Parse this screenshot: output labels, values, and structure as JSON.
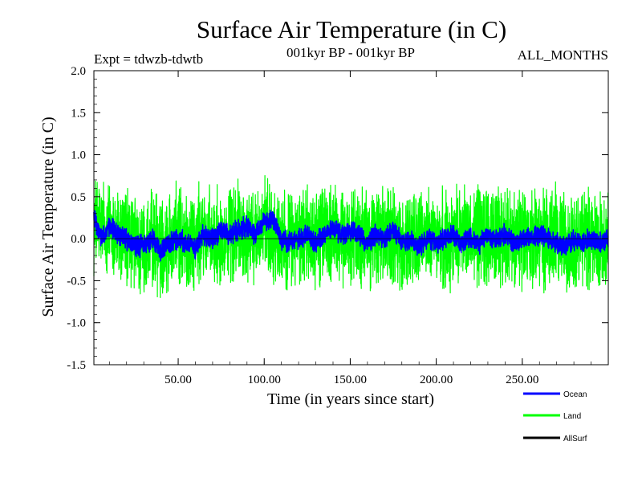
{
  "chart_data": {
    "type": "line",
    "title": "Surface Air Temperature (in C)",
    "subtitle_left": "Expt = tdwzb-tdwtb",
    "subtitle_center": "001kyr BP - 001kyr BP",
    "subtitle_right": "ALL_MONTHS",
    "xlabel": "Time (in years since start)",
    "ylabel": "Surface Air Temperature (in C)",
    "xlim": [
      1,
      300
    ],
    "ylim": [
      -1.5,
      2.0
    ],
    "x_ticks": [
      50,
      100,
      150,
      200,
      250
    ],
    "x_tick_labels": [
      "50.00",
      "100.00",
      "150.00",
      "200.00",
      "250.00"
    ],
    "y_ticks": [
      -1.5,
      -1.0,
      -0.5,
      0.0,
      0.5,
      1.0,
      1.5,
      2.0
    ],
    "y_tick_labels": [
      "-1.5",
      "-1.0",
      "-0.5",
      "0.0",
      "0.5",
      "1.0",
      "1.5",
      "2.0"
    ],
    "zero_line": true,
    "series": [
      {
        "name": "Ocean",
        "color": "#0000ff",
        "noisy_monthly": true,
        "noise_amplitude": 0.09,
        "x": [
          1,
          3,
          6,
          10,
          15,
          20,
          25,
          30,
          35,
          40,
          45,
          50,
          55,
          60,
          65,
          70,
          75,
          80,
          85,
          90,
          95,
          100,
          105,
          110,
          115,
          120,
          125,
          130,
          135,
          140,
          145,
          150,
          155,
          160,
          165,
          170,
          175,
          180,
          185,
          190,
          195,
          200,
          205,
          210,
          215,
          220,
          225,
          230,
          235,
          240,
          245,
          250,
          255,
          260,
          265,
          270,
          275,
          280,
          285,
          290,
          295,
          300
        ],
        "values": [
          0.3,
          0.1,
          0.0,
          0.15,
          0.05,
          0.0,
          -0.1,
          -0.08,
          0.0,
          -0.15,
          -0.05,
          0.0,
          -0.05,
          -0.1,
          0.05,
          0.0,
          0.1,
          0.05,
          0.1,
          0.15,
          0.05,
          0.2,
          0.25,
          0.0,
          -0.05,
          0.0,
          0.05,
          -0.05,
          0.05,
          0.1,
          0.05,
          0.1,
          0.05,
          -0.05,
          0.05,
          0.0,
          0.1,
          -0.05,
          0.0,
          -0.1,
          0.0,
          -0.05,
          0.0,
          0.05,
          -0.05,
          0.0,
          -0.05,
          0.05,
          0.0,
          0.05,
          -0.05,
          0.0,
          0.0,
          0.05,
          0.0,
          -0.05,
          -0.1,
          0.0,
          -0.05,
          0.0,
          -0.05,
          0.0
        ]
      },
      {
        "name": "Land",
        "color": "#00ff00",
        "noisy_monthly": true,
        "noise_amplitude": 0.42,
        "x": [
          1,
          5,
          10,
          15,
          20,
          25,
          30,
          35,
          40,
          45,
          50,
          55,
          60,
          65,
          70,
          75,
          80,
          85,
          90,
          95,
          100,
          105,
          110,
          115,
          120,
          125,
          130,
          135,
          140,
          145,
          150,
          155,
          160,
          165,
          170,
          175,
          180,
          185,
          190,
          195,
          200,
          205,
          210,
          215,
          220,
          225,
          230,
          235,
          240,
          245,
          250,
          255,
          260,
          265,
          270,
          275,
          280,
          285,
          290,
          295,
          300
        ],
        "values": [
          0.2,
          0.15,
          0.1,
          0.0,
          0.05,
          -0.1,
          -0.15,
          -0.05,
          -0.1,
          0.0,
          0.05,
          -0.05,
          0.0,
          0.05,
          -0.05,
          0.05,
          0.0,
          0.1,
          0.05,
          0.0,
          0.15,
          0.05,
          0.0,
          -0.05,
          0.0,
          0.05,
          0.0,
          0.1,
          0.05,
          0.0,
          0.05,
          0.0,
          -0.05,
          0.05,
          0.0,
          0.05,
          -0.1,
          0.0,
          -0.05,
          0.05,
          0.0,
          -0.05,
          0.05,
          0.1,
          0.0,
          0.05,
          0.05,
          0.0,
          -0.05,
          0.05,
          0.0,
          0.05,
          -0.05,
          0.0,
          0.05,
          0.0,
          -0.05,
          0.05,
          0.0,
          -0.05,
          0.0
        ]
      },
      {
        "name": "AllSurf",
        "color": "#000000",
        "x": [],
        "values": []
      }
    ],
    "legend_position": "bottom-right"
  }
}
